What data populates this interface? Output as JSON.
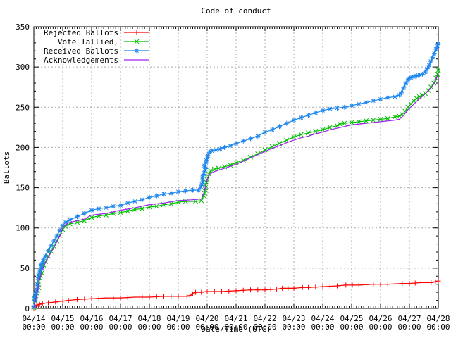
{
  "title": "Code of conduct",
  "chart_data": {
    "type": "line",
    "title": "Code of conduct",
    "xlabel": "Date/Time (UTC)",
    "ylabel": "Ballots",
    "ylim": [
      0,
      350
    ],
    "y_tick_step": 50,
    "y_minor_step": 10,
    "x_range_days": [
      0,
      14
    ],
    "x_minor_per_day": 12,
    "grid": "dashed-gray",
    "legend_position": "top-left-inside",
    "colors": {
      "axis": "#000000",
      "grid": "#a9a9a9",
      "background": "#ffffff"
    },
    "x_ticks": [
      {
        "date": "04/14",
        "time": "00:00"
      },
      {
        "date": "04/15",
        "time": "00:00"
      },
      {
        "date": "04/16",
        "time": "00:00"
      },
      {
        "date": "04/17",
        "time": "00:00"
      },
      {
        "date": "04/18",
        "time": "00:00"
      },
      {
        "date": "04/19",
        "time": "00:00"
      },
      {
        "date": "04/20",
        "time": "00:00"
      },
      {
        "date": "04/21",
        "time": "00:00"
      },
      {
        "date": "04/22",
        "time": "00:00"
      },
      {
        "date": "04/23",
        "time": "00:00"
      },
      {
        "date": "04/24",
        "time": "00:00"
      },
      {
        "date": "04/25",
        "time": "00:00"
      },
      {
        "date": "04/26",
        "time": "00:00"
      },
      {
        "date": "04/27",
        "time": "00:00"
      },
      {
        "date": "04/28",
        "time": "00:00"
      }
    ],
    "series": [
      {
        "name": "Rejected Ballots",
        "color": "#ff0000",
        "marker": "plus",
        "points": [
          [
            0,
            0
          ],
          [
            0.05,
            2
          ],
          [
            0.1,
            4
          ],
          [
            0.2,
            5
          ],
          [
            0.3,
            6
          ],
          [
            0.5,
            7
          ],
          [
            0.75,
            8
          ],
          [
            1.0,
            9
          ],
          [
            1.2,
            10
          ],
          [
            1.5,
            11
          ],
          [
            2.0,
            12
          ],
          [
            2.5,
            13
          ],
          [
            3.0,
            13
          ],
          [
            3.5,
            14
          ],
          [
            4.0,
            14
          ],
          [
            4.5,
            15
          ],
          [
            5.0,
            15
          ],
          [
            5.3,
            15
          ],
          [
            5.4,
            16
          ],
          [
            5.5,
            18
          ],
          [
            5.6,
            20
          ],
          [
            5.8,
            20
          ],
          [
            6.0,
            21
          ],
          [
            6.5,
            21
          ],
          [
            7.0,
            22
          ],
          [
            7.5,
            23
          ],
          [
            8.0,
            23
          ],
          [
            8.4,
            24
          ],
          [
            8.6,
            25
          ],
          [
            9.0,
            25
          ],
          [
            9.3,
            26
          ],
          [
            9.5,
            26
          ],
          [
            10.0,
            27
          ],
          [
            10.5,
            28
          ],
          [
            10.8,
            29
          ],
          [
            11.25,
            29
          ],
          [
            11.75,
            30
          ],
          [
            12.25,
            30
          ],
          [
            12.75,
            31
          ],
          [
            13.0,
            31
          ],
          [
            13.4,
            32
          ],
          [
            13.75,
            32
          ],
          [
            13.9,
            33
          ],
          [
            14.0,
            34
          ]
        ]
      },
      {
        "name": "Vote Tallied,",
        "color": "#00c000",
        "marker": "cross",
        "points": [
          [
            0,
            1
          ],
          [
            0.05,
            9
          ],
          [
            0.1,
            19
          ],
          [
            0.15,
            29
          ],
          [
            0.2,
            38
          ],
          [
            0.3,
            50
          ],
          [
            0.4,
            58
          ],
          [
            0.5,
            65
          ],
          [
            0.6,
            71
          ],
          [
            0.7,
            77
          ],
          [
            0.8,
            84
          ],
          [
            0.9,
            91
          ],
          [
            1.0,
            98
          ],
          [
            1.1,
            102
          ],
          [
            1.25,
            105
          ],
          [
            1.5,
            107
          ],
          [
            1.75,
            109
          ],
          [
            2.0,
            113
          ],
          [
            2.25,
            115
          ],
          [
            2.5,
            116
          ],
          [
            2.75,
            118
          ],
          [
            3.0,
            119
          ],
          [
            3.25,
            121
          ],
          [
            3.5,
            123
          ],
          [
            3.75,
            124
          ],
          [
            4.0,
            126
          ],
          [
            4.25,
            127
          ],
          [
            4.5,
            129
          ],
          [
            4.75,
            130
          ],
          [
            5.0,
            132
          ],
          [
            5.25,
            133
          ],
          [
            5.6,
            133
          ],
          [
            5.8,
            134
          ],
          [
            5.88,
            140
          ],
          [
            5.94,
            150
          ],
          [
            6.0,
            160
          ],
          [
            6.06,
            167
          ],
          [
            6.12,
            171
          ],
          [
            6.25,
            173
          ],
          [
            6.4,
            174
          ],
          [
            6.6,
            176
          ],
          [
            6.8,
            178
          ],
          [
            7.0,
            181
          ],
          [
            7.25,
            184
          ],
          [
            7.5,
            188
          ],
          [
            7.75,
            192
          ],
          [
            8.0,
            197
          ],
          [
            8.25,
            201
          ],
          [
            8.5,
            205
          ],
          [
            8.75,
            209
          ],
          [
            9.0,
            213
          ],
          [
            9.25,
            216
          ],
          [
            9.5,
            218
          ],
          [
            9.75,
            220
          ],
          [
            10.0,
            222
          ],
          [
            10.25,
            225
          ],
          [
            10.5,
            227
          ],
          [
            10.6,
            229
          ],
          [
            10.75,
            230
          ],
          [
            11.0,
            231
          ],
          [
            11.25,
            232
          ],
          [
            11.5,
            233
          ],
          [
            11.75,
            234
          ],
          [
            12.0,
            235
          ],
          [
            12.25,
            236
          ],
          [
            12.5,
            238
          ],
          [
            12.65,
            239
          ],
          [
            12.75,
            241
          ],
          [
            12.85,
            245
          ],
          [
            12.95,
            250
          ],
          [
            13.05,
            254
          ],
          [
            13.15,
            258
          ],
          [
            13.25,
            261
          ],
          [
            13.35,
            263
          ],
          [
            13.45,
            265
          ],
          [
            13.55,
            267
          ],
          [
            13.65,
            271
          ],
          [
            13.75,
            275
          ],
          [
            13.85,
            280
          ],
          [
            13.92,
            286
          ],
          [
            13.97,
            291
          ],
          [
            14.0,
            296
          ]
        ]
      },
      {
        "name": "Received Ballots",
        "color": "#1c86ee",
        "marker": "asterisk",
        "points": [
          [
            0,
            2
          ],
          [
            0.04,
            10
          ],
          [
            0.08,
            20
          ],
          [
            0.12,
            30
          ],
          [
            0.16,
            38
          ],
          [
            0.22,
            48
          ],
          [
            0.3,
            57
          ],
          [
            0.4,
            65
          ],
          [
            0.5,
            72
          ],
          [
            0.6,
            78
          ],
          [
            0.7,
            84
          ],
          [
            0.8,
            90
          ],
          [
            0.9,
            97
          ],
          [
            1.0,
            103
          ],
          [
            1.1,
            107
          ],
          [
            1.25,
            110
          ],
          [
            1.5,
            114
          ],
          [
            1.75,
            118
          ],
          [
            2.0,
            122
          ],
          [
            2.25,
            124
          ],
          [
            2.5,
            125
          ],
          [
            2.75,
            127
          ],
          [
            3.0,
            128
          ],
          [
            3.25,
            131
          ],
          [
            3.5,
            133
          ],
          [
            3.75,
            135
          ],
          [
            4.0,
            138
          ],
          [
            4.25,
            140
          ],
          [
            4.5,
            142
          ],
          [
            4.75,
            143
          ],
          [
            5.0,
            145
          ],
          [
            5.25,
            146
          ],
          [
            5.5,
            147
          ],
          [
            5.7,
            147
          ],
          [
            5.78,
            151
          ],
          [
            5.84,
            160
          ],
          [
            5.9,
            170
          ],
          [
            5.96,
            181
          ],
          [
            6.02,
            190
          ],
          [
            6.08,
            194
          ],
          [
            6.15,
            196
          ],
          [
            6.3,
            197
          ],
          [
            6.45,
            198
          ],
          [
            6.6,
            200
          ],
          [
            6.8,
            202
          ],
          [
            7.0,
            205
          ],
          [
            7.25,
            208
          ],
          [
            7.5,
            211
          ],
          [
            7.75,
            214
          ],
          [
            8.0,
            219
          ],
          [
            8.25,
            222
          ],
          [
            8.5,
            226
          ],
          [
            8.75,
            230
          ],
          [
            9.0,
            234
          ],
          [
            9.25,
            237
          ],
          [
            9.5,
            240
          ],
          [
            9.75,
            243
          ],
          [
            10.0,
            246
          ],
          [
            10.25,
            248
          ],
          [
            10.5,
            249
          ],
          [
            10.75,
            250
          ],
          [
            11.0,
            252
          ],
          [
            11.25,
            254
          ],
          [
            11.5,
            256
          ],
          [
            11.75,
            258
          ],
          [
            12.0,
            260
          ],
          [
            12.25,
            262
          ],
          [
            12.5,
            263
          ],
          [
            12.65,
            265
          ],
          [
            12.72,
            268
          ],
          [
            12.8,
            274
          ],
          [
            12.88,
            280
          ],
          [
            12.96,
            285
          ],
          [
            13.05,
            287
          ],
          [
            13.15,
            288
          ],
          [
            13.25,
            289
          ],
          [
            13.35,
            290
          ],
          [
            13.45,
            291
          ],
          [
            13.55,
            294
          ],
          [
            13.62,
            298
          ],
          [
            13.68,
            302
          ],
          [
            13.74,
            307
          ],
          [
            13.8,
            312
          ],
          [
            13.86,
            317
          ],
          [
            13.92,
            322
          ],
          [
            13.97,
            326
          ],
          [
            14.0,
            329
          ]
        ]
      },
      {
        "name": "Acknowledgements",
        "color": "#a020f0",
        "marker": "none",
        "points": [
          [
            0,
            1
          ],
          [
            0.1,
            16
          ],
          [
            0.2,
            36
          ],
          [
            0.3,
            49
          ],
          [
            0.5,
            64
          ],
          [
            0.7,
            76
          ],
          [
            0.9,
            90
          ],
          [
            1.0,
            100
          ],
          [
            1.1,
            104
          ],
          [
            1.25,
            107
          ],
          [
            1.5,
            109
          ],
          [
            1.75,
            111
          ],
          [
            2.0,
            116
          ],
          [
            2.5,
            118
          ],
          [
            3.0,
            122
          ],
          [
            3.5,
            125
          ],
          [
            4.0,
            129
          ],
          [
            4.5,
            131
          ],
          [
            5.0,
            134
          ],
          [
            5.5,
            135
          ],
          [
            5.8,
            136
          ],
          [
            5.9,
            145
          ],
          [
            6.0,
            160
          ],
          [
            6.1,
            167
          ],
          [
            6.25,
            170
          ],
          [
            6.5,
            173
          ],
          [
            6.75,
            176
          ],
          [
            7.0,
            179
          ],
          [
            7.25,
            183
          ],
          [
            7.5,
            187
          ],
          [
            7.75,
            191
          ],
          [
            8.0,
            195
          ],
          [
            8.25,
            199
          ],
          [
            8.5,
            202
          ],
          [
            8.75,
            206
          ],
          [
            9.0,
            209
          ],
          [
            9.25,
            212
          ],
          [
            9.5,
            214
          ],
          [
            9.75,
            217
          ],
          [
            10.0,
            219
          ],
          [
            10.25,
            222
          ],
          [
            10.5,
            224
          ],
          [
            10.75,
            226
          ],
          [
            11.0,
            228
          ],
          [
            11.5,
            230
          ],
          [
            12.0,
            232
          ],
          [
            12.5,
            234
          ],
          [
            12.65,
            235
          ],
          [
            12.8,
            240
          ],
          [
            12.95,
            247
          ],
          [
            13.1,
            252
          ],
          [
            13.3,
            259
          ],
          [
            13.5,
            265
          ],
          [
            13.7,
            272
          ],
          [
            13.85,
            279
          ],
          [
            13.95,
            287
          ],
          [
            14.0,
            292
          ]
        ]
      }
    ]
  }
}
